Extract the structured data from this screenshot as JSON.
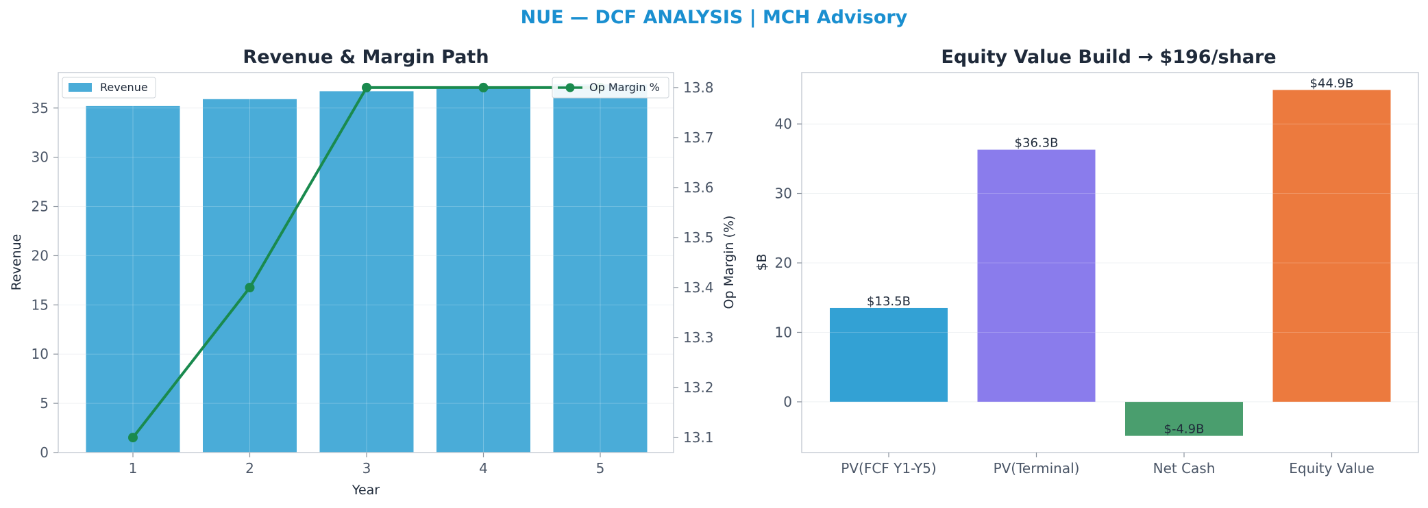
{
  "suptitle": "NUE — DCF ANALYSIS | MCH Advisory",
  "colors": {
    "title": "#1a8fd0",
    "revenue_bar": "#4aacd8",
    "margin_line": "#1a8a4e",
    "pv_fcf": "#33a1d4",
    "pv_terminal": "#8a7cec",
    "net_cash": "#4a9e6e",
    "equity_value": "#ec7a3e"
  },
  "chart_data": [
    {
      "type": "bar",
      "title": "Revenue & Margin Path",
      "xlabel": "Year",
      "ylabel": "Revenue",
      "y2label": "Op Margin (%)",
      "categories": [
        "1",
        "2",
        "3",
        "4",
        "5"
      ],
      "ylim": [
        0,
        38.6
      ],
      "y2lim": [
        13.07,
        13.83
      ],
      "yticks": [
        "0",
        "5",
        "10",
        "15",
        "20",
        "25",
        "30",
        "35"
      ],
      "y2ticks": [
        "13.1",
        "13.2",
        "13.3",
        "13.4",
        "13.5",
        "13.6",
        "13.7",
        "13.8"
      ],
      "grid": true,
      "series": [
        {
          "name": "Revenue",
          "type": "bar",
          "axis": "left",
          "values": [
            35.2,
            35.9,
            36.7,
            37.0,
            37.4
          ]
        },
        {
          "name": "Op Margin %",
          "type": "line",
          "axis": "right",
          "values": [
            13.1,
            13.4,
            13.8,
            13.8,
            13.8
          ]
        }
      ],
      "legend": [
        "top-left",
        "top-right"
      ]
    },
    {
      "type": "bar",
      "title": "Equity Value Build → $196/share",
      "xlabel": "",
      "ylabel": "$B",
      "categories": [
        "PV(FCF Y1-Y5)",
        "PV(Terminal)",
        "Net Cash",
        "Equity Value"
      ],
      "values": [
        13.5,
        36.3,
        -4.9,
        44.9
      ],
      "data_labels": [
        "$13.5B",
        "$36.3B",
        "$-4.9B",
        "$44.9B"
      ],
      "ylim": [
        -7.3,
        47.4
      ],
      "yticks": [
        "0",
        "10",
        "20",
        "30",
        "40"
      ],
      "grid": true
    }
  ]
}
